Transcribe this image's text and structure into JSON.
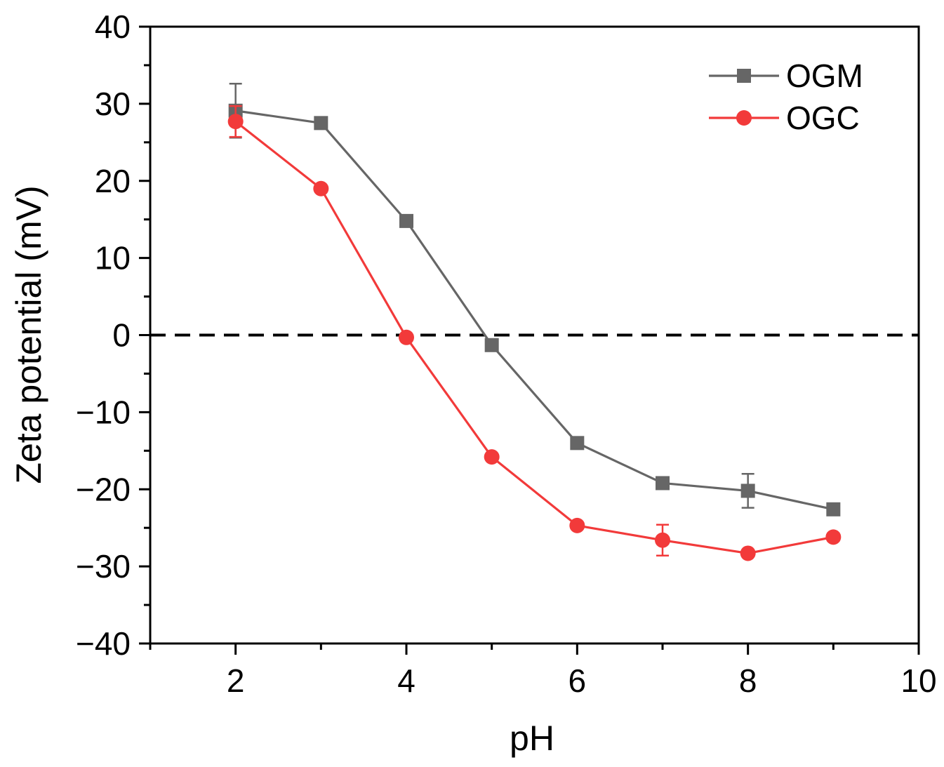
{
  "chart_data": {
    "type": "line",
    "xlabel": "pH",
    "ylabel": "Zeta potential (mV)",
    "xlim": [
      1,
      10
    ],
    "ylim": [
      -40,
      40
    ],
    "x_ticks": [
      2,
      4,
      6,
      8,
      10
    ],
    "x_tick_labels": [
      "2",
      "4",
      "6",
      "8",
      "10"
    ],
    "y_ticks": [
      -40,
      -30,
      -20,
      -10,
      0,
      10,
      20,
      30,
      40
    ],
    "y_tick_labels": [
      "−40",
      "−30",
      "−20",
      "−10",
      "0",
      "10",
      "20",
      "30",
      "40"
    ],
    "grid": false,
    "legend_position": "top-right",
    "reference_line": {
      "y": 0,
      "style": "dashed",
      "color": "#000000"
    },
    "series": [
      {
        "name": "OGM",
        "color": "#666666",
        "marker": "square",
        "x": [
          2,
          3,
          4,
          5,
          6,
          7,
          8,
          9
        ],
        "y": [
          29.1,
          27.5,
          14.8,
          -1.3,
          -14.0,
          -19.2,
          -20.2,
          -22.6
        ],
        "yerr": [
          3.5,
          0.3,
          0.4,
          0.3,
          0.3,
          0.5,
          2.2,
          0.3
        ]
      },
      {
        "name": "OGC",
        "color": "#f23a3a",
        "marker": "circle",
        "x": [
          2,
          3,
          4,
          5,
          6,
          7,
          8,
          9
        ],
        "y": [
          27.7,
          19.0,
          -0.3,
          -15.8,
          -24.7,
          -26.6,
          -28.3,
          -26.2
        ],
        "yerr": [
          2.0,
          0.4,
          0.3,
          0.3,
          0.4,
          2.0,
          0.3,
          0.5
        ]
      }
    ]
  }
}
